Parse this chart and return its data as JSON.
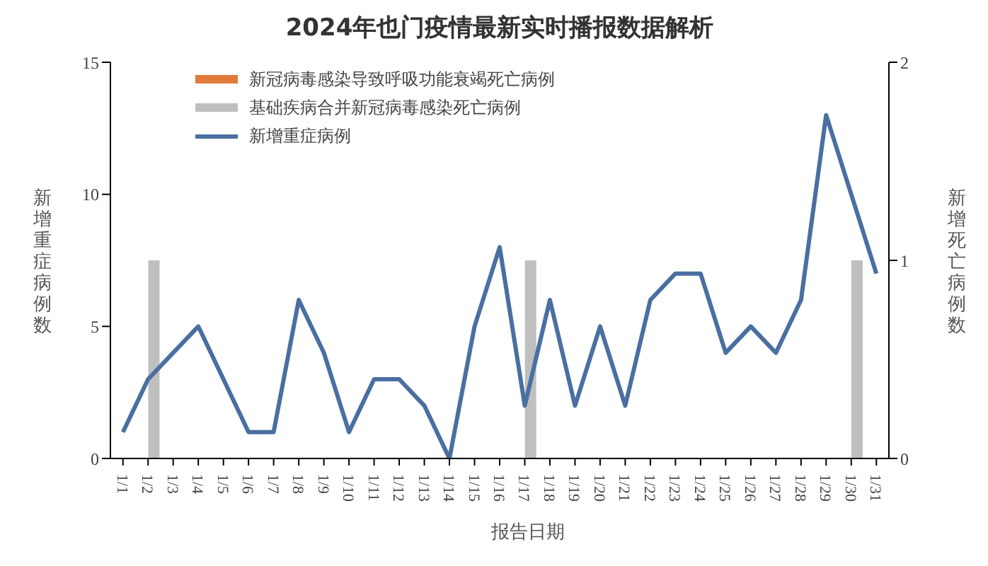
{
  "chart_data": {
    "type": "bar",
    "title": "2024年也门疫情最新实时播报数据解析",
    "xlabel": "报告日期",
    "ylabel": "新增重症病例数",
    "y2label": "新增死亡病例数",
    "categories": [
      "1/1",
      "1/2",
      "1/3",
      "1/4",
      "1/5",
      "1/6",
      "1/7",
      "1/8",
      "1/9",
      "1/10",
      "1/11",
      "1/12",
      "1/13",
      "1/14",
      "1/15",
      "1/16",
      "1/17",
      "1/18",
      "1/19",
      "1/20",
      "1/21",
      "1/22",
      "1/23",
      "1/24",
      "1/25",
      "1/26",
      "1/27",
      "1/28",
      "1/29",
      "1/30",
      "1/31"
    ],
    "series": [
      {
        "name": "新冠病毒感染导致呼吸功能衰竭死亡病例",
        "axis": "y2",
        "color": "#e07b39",
        "values": [
          null,
          null,
          null,
          null,
          null,
          null,
          null,
          null,
          null,
          null,
          null,
          null,
          null,
          null,
          null,
          null,
          null,
          null,
          null,
          null,
          null,
          null,
          null,
          null,
          null,
          null,
          null,
          null,
          null,
          null,
          null
        ]
      },
      {
        "name": "基础疾病合并新冠病毒感染死亡病例",
        "axis": "y2",
        "color": "#bfbfbf",
        "values": [
          null,
          1,
          null,
          null,
          null,
          null,
          null,
          null,
          null,
          null,
          null,
          null,
          null,
          null,
          null,
          null,
          1,
          null,
          null,
          null,
          null,
          null,
          null,
          null,
          null,
          null,
          null,
          null,
          null,
          1,
          null
        ]
      },
      {
        "name": "新增重症病例",
        "type": "line",
        "color": "#4a6fa0",
        "values": [
          1,
          3,
          4,
          5,
          3,
          1,
          1,
          6,
          4,
          1,
          3,
          3,
          2,
          0,
          5,
          8,
          2,
          6,
          2,
          5,
          2,
          6,
          7,
          7,
          4,
          5,
          4,
          6,
          13,
          10,
          7
        ]
      }
    ],
    "ylim": [
      0,
      15
    ],
    "yticks": [
      0,
      5,
      10,
      15
    ],
    "y2lim": [
      0,
      2
    ],
    "y2ticks": [
      0,
      1,
      2
    ],
    "grid": false,
    "legend": "top left",
    "marker": "none",
    "line_style": "solid"
  }
}
